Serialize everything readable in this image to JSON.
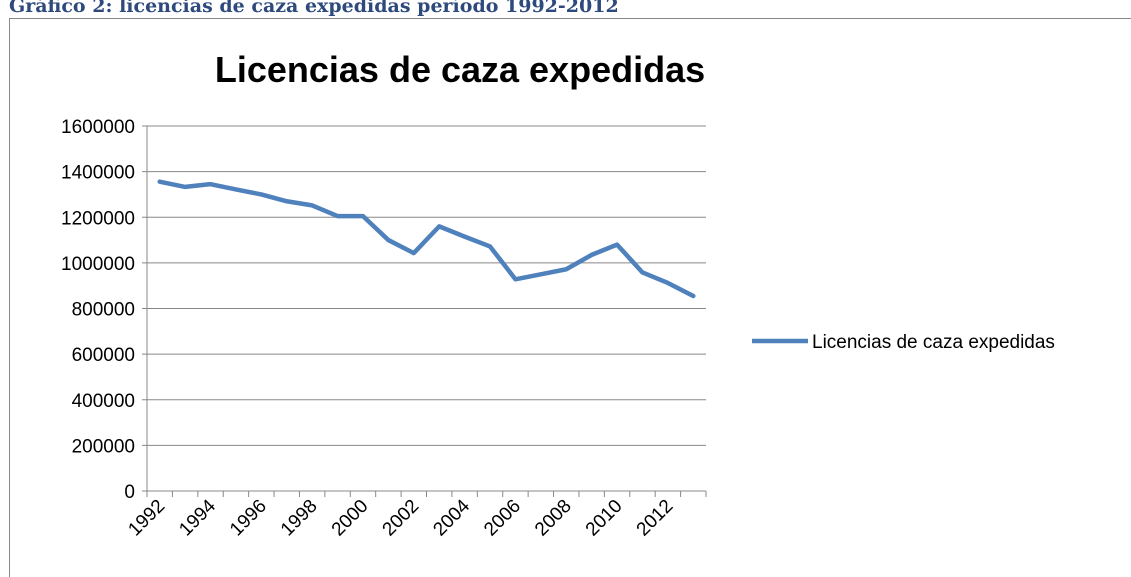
{
  "caption": "Gráfico 2: licencias de caza expedidas período 1992-2012",
  "chart_data": {
    "type": "line",
    "title": "Licencias de caza expedidas",
    "categories": [
      "1992",
      null,
      "1994",
      null,
      "1996",
      null,
      "1998",
      null,
      "2000",
      null,
      "2002",
      null,
      "2004",
      null,
      "2006",
      null,
      "2008",
      null,
      "2010",
      null,
      "2012",
      null
    ],
    "series": [
      {
        "name": "Licencias de caza expedidas",
        "color": "#4f81bd",
        "values": [
          1356000,
          1333000,
          1345000,
          1322000,
          1300000,
          1270000,
          1252000,
          1205000,
          1205000,
          1100000,
          1043000,
          1160000,
          1115000,
          1072000,
          928000,
          950000,
          972000,
          1035000,
          1080000,
          958000,
          912000,
          855000
        ]
      }
    ],
    "ylim": [
      0,
      1600000
    ],
    "yticks": [
      0,
      200000,
      400000,
      600000,
      800000,
      1000000,
      1200000,
      1400000,
      1600000
    ],
    "grid": true,
    "legend": "right"
  }
}
